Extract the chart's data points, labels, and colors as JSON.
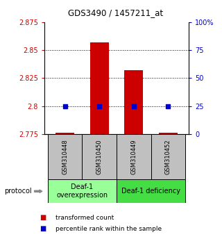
{
  "title": "GDS3490 / 1457211_at",
  "samples": [
    "GSM310448",
    "GSM310450",
    "GSM310449",
    "GSM310452"
  ],
  "transformed_counts": [
    2.7762,
    2.857,
    2.832,
    2.7762
  ],
  "percentile_values": [
    2.8,
    2.8,
    2.8,
    2.8
  ],
  "ylim": [
    2.775,
    2.875
  ],
  "yticks": [
    2.775,
    2.8,
    2.825,
    2.85,
    2.875
  ],
  "ytick_labels": [
    "2.775",
    "2.8",
    "2.825",
    "2.85",
    "2.875"
  ],
  "right_yticks_pct": [
    0,
    25,
    50,
    75,
    100
  ],
  "right_ytick_labels": [
    "0",
    "25",
    "50",
    "75",
    "100%"
  ],
  "hline_values": [
    2.8,
    2.825,
    2.85
  ],
  "bar_color": "#cc0000",
  "dot_color": "#0000cc",
  "bar_width": 0.55,
  "groups": [
    {
      "label": "Deaf-1\noverexpression",
      "indices": [
        0,
        1
      ],
      "color": "#99ff99"
    },
    {
      "label": "Deaf-1 deficiency",
      "indices": [
        2,
        3
      ],
      "color": "#44dd44"
    }
  ],
  "protocol_label": "protocol",
  "legend_red_label": "transformed count",
  "legend_blue_label": "percentile rank within the sample",
  "tick_color_left": "#cc0000",
  "tick_color_right": "#0000cc",
  "sample_box_color": "#c0c0c0",
  "title_fontsize": 8.5,
  "tick_fontsize": 7,
  "sample_fontsize": 6,
  "group_fontsize": 7,
  "legend_fontsize": 6.5
}
